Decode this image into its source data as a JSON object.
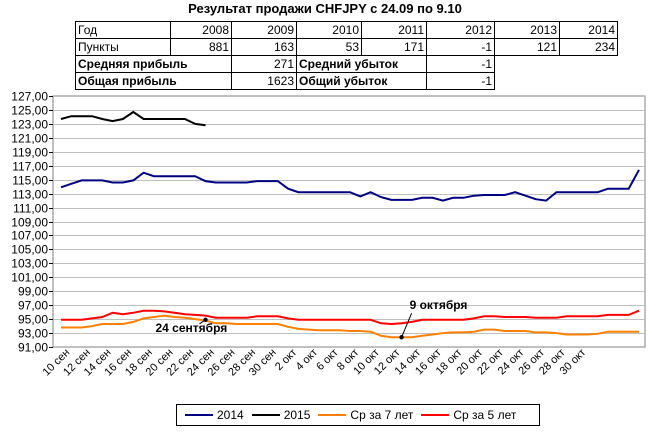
{
  "table": {
    "year_label": "Год",
    "points_label": "Пункты",
    "years": [
      "2008",
      "2009",
      "2010",
      "2011",
      "2012",
      "2013",
      "2014"
    ],
    "points": [
      "881",
      "163",
      "53",
      "171",
      "-1",
      "121",
      "234"
    ],
    "avg_profit_label": "Средняя прибыль",
    "avg_profit": "271",
    "avg_loss_label": "Средний убыток",
    "avg_loss": "-1",
    "total_profit_label": "Общая прибыль",
    "total_profit": "1623",
    "total_loss_label": "Общий убыток",
    "total_loss": "-1"
  },
  "chart_data": {
    "type": "line",
    "title": "Результат продажи CHFJPY с 24.09 по 9.10",
    "x_tick_labels": [
      "10 сен",
      "12 сен",
      "14 сен",
      "16 сен",
      "18 сен",
      "20 сен",
      "22 сен",
      "24 сен",
      "26 сен",
      "28 сен",
      "30 сен",
      "2 окт",
      "4 окт",
      "6 окт",
      "8 окт",
      "10 окт",
      "12 окт",
      "14 окт",
      "16 окт",
      "18 окт",
      "20 окт",
      "22 окт",
      "24 окт",
      "26 окт",
      "28 окт",
      "30 окт"
    ],
    "y_ticks": [
      "91,00",
      "93,00",
      "95,00",
      "97,00",
      "99,00",
      "101,00",
      "103,00",
      "105,00",
      "107,00",
      "109,00",
      "111,00",
      "113,00",
      "115,00",
      "117,00",
      "119,00",
      "121,00",
      "123,00",
      "125,00",
      "127,00"
    ],
    "ylim": [
      91,
      127
    ],
    "grid": true,
    "legend_position": "bottom",
    "series": [
      {
        "name": "2014",
        "color": "#000080",
        "values": [
          113.9,
          114.4,
          114.9,
          114.9,
          114.9,
          114.6,
          114.6,
          114.9,
          116.0,
          115.5,
          115.5,
          115.5,
          115.5,
          115.5,
          114.8,
          114.6,
          114.6,
          114.6,
          114.6,
          114.8,
          114.8,
          114.8,
          113.7,
          113.2,
          113.2,
          113.2,
          113.2,
          113.2,
          113.2,
          112.6,
          113.2,
          112.5,
          112.1,
          112.1,
          112.1,
          112.4,
          112.4,
          112.0,
          112.4,
          112.4,
          112.7,
          112.8,
          112.8,
          112.8,
          113.2,
          112.7,
          112.2,
          112.0,
          113.2,
          113.2,
          113.2,
          113.2,
          113.2,
          113.7,
          113.7,
          113.7,
          116.4
        ]
      },
      {
        "name": "2015",
        "color": "#000000",
        "values": [
          123.7,
          124.1,
          124.1,
          124.1,
          123.7,
          123.4,
          123.7,
          124.7,
          123.7,
          123.7,
          123.7,
          123.7,
          123.7,
          123.0,
          122.8,
          null,
          null,
          null,
          null,
          null,
          null,
          null,
          null,
          null,
          null,
          null,
          null,
          null,
          null,
          null,
          null,
          null,
          null,
          null,
          null,
          null,
          null,
          null,
          null,
          null,
          null,
          null,
          null,
          null,
          null,
          null,
          null,
          null,
          null,
          null,
          null,
          null,
          null,
          null,
          null,
          null,
          null
        ]
      },
      {
        "name": "Ср за 7 лет",
        "color": "#FF8000",
        "values": [
          93.8,
          93.8,
          93.8,
          94.0,
          94.3,
          94.3,
          94.3,
          94.6,
          95.1,
          95.3,
          95.5,
          95.3,
          95.2,
          95.0,
          94.8,
          94.4,
          94.4,
          94.3,
          94.3,
          94.3,
          94.3,
          94.3,
          93.9,
          93.6,
          93.5,
          93.4,
          93.4,
          93.4,
          93.3,
          93.3,
          93.2,
          92.6,
          92.4,
          92.4,
          92.4,
          92.6,
          92.8,
          93.0,
          93.1,
          93.1,
          93.2,
          93.5,
          93.5,
          93.3,
          93.3,
          93.3,
          93.1,
          93.1,
          93.0,
          92.8,
          92.8,
          92.8,
          92.9,
          93.2,
          93.2,
          93.2,
          93.2
        ]
      },
      {
        "name": "Ср за 5 лет",
        "color": "#FF0000",
        "values": [
          94.9,
          94.9,
          94.9,
          95.1,
          95.3,
          95.9,
          95.7,
          95.9,
          96.2,
          96.2,
          96.1,
          95.9,
          95.7,
          95.6,
          95.5,
          95.2,
          95.2,
          95.2,
          95.2,
          95.4,
          95.4,
          95.4,
          95.1,
          94.9,
          94.9,
          94.9,
          94.9,
          94.9,
          94.9,
          94.9,
          94.9,
          94.4,
          94.3,
          94.4,
          94.6,
          94.9,
          94.9,
          94.9,
          94.9,
          94.9,
          95.1,
          95.4,
          95.4,
          95.3,
          95.3,
          95.3,
          95.2,
          95.2,
          95.2,
          95.4,
          95.4,
          95.4,
          95.4,
          95.6,
          95.6,
          95.6,
          96.2
        ]
      }
    ],
    "annotations": [
      {
        "text": "24 сентября",
        "x_index": 14,
        "y": 94.9
      },
      {
        "text": "9 октября",
        "x_index": 33,
        "y": 92.4
      }
    ]
  }
}
